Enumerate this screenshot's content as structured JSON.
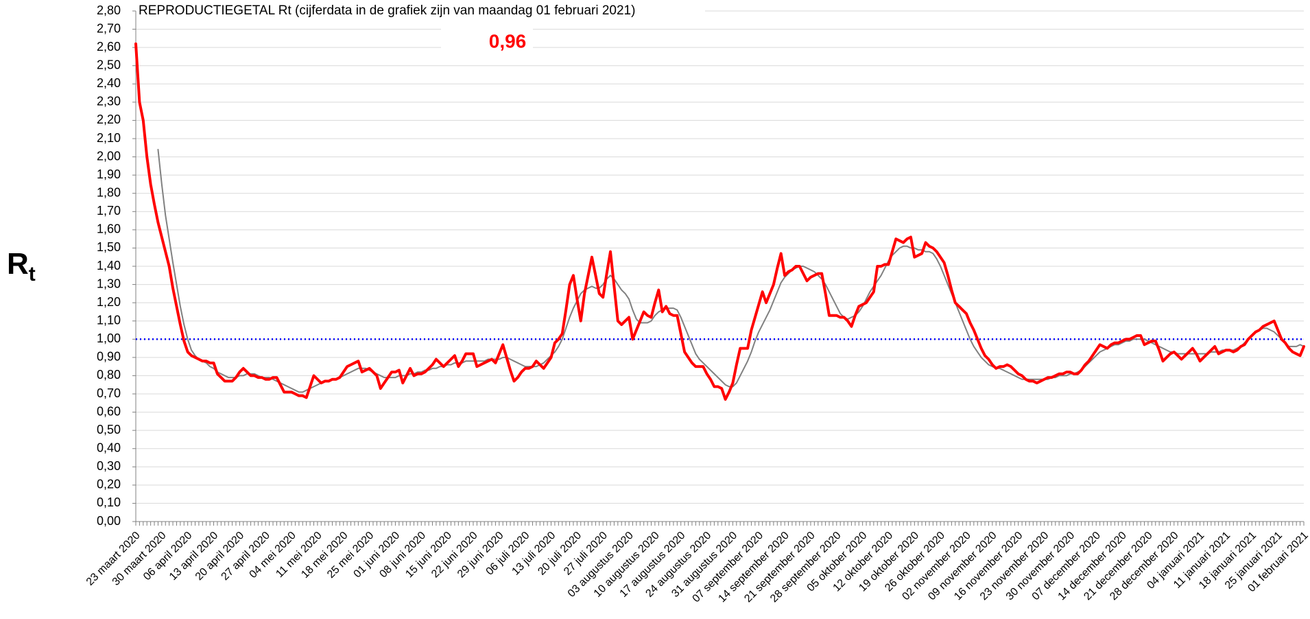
{
  "chart_data": {
    "type": "line",
    "title": "REPRODUCTIEGETAL Rt (cijferdata in de grafiek zijn van maandag 01 februari 2021)",
    "annotation": "0,96",
    "annotation_color": "#ff0000",
    "ylabel": "R",
    "ylabel_subscript": "t",
    "ylim": [
      0,
      2.8
    ],
    "yticks": [
      {
        "value": 0,
        "label": "0,00"
      },
      {
        "value": 0.1,
        "label": "0,10"
      },
      {
        "value": 0.2,
        "label": "0,20"
      },
      {
        "value": 0.3,
        "label": "0,30"
      },
      {
        "value": 0.4,
        "label": "0,40"
      },
      {
        "value": 0.5,
        "label": "0,50"
      },
      {
        "value": 0.6,
        "label": "0,60"
      },
      {
        "value": 0.7,
        "label": "0,70"
      },
      {
        "value": 0.8,
        "label": "0,80"
      },
      {
        "value": 0.9,
        "label": "0,90"
      },
      {
        "value": 1,
        "label": "1,00"
      },
      {
        "value": 1.1,
        "label": "1,10"
      },
      {
        "value": 1.2,
        "label": "1,20"
      },
      {
        "value": 1.3,
        "label": "1,30"
      },
      {
        "value": 1.4,
        "label": "1,40"
      },
      {
        "value": 1.5,
        "label": "1,50"
      },
      {
        "value": 1.6,
        "label": "1,60"
      },
      {
        "value": 1.7,
        "label": "1,70"
      },
      {
        "value": 1.8,
        "label": "1,80"
      },
      {
        "value": 1.9,
        "label": "1,90"
      },
      {
        "value": 2,
        "label": "2,00"
      },
      {
        "value": 2.1,
        "label": "2,10"
      },
      {
        "value": 2.2,
        "label": "2,20"
      },
      {
        "value": 2.3,
        "label": "2,30"
      },
      {
        "value": 2.4,
        "label": "2,40"
      },
      {
        "value": 2.5,
        "label": "2,50"
      },
      {
        "value": 2.6,
        "label": "2,60"
      },
      {
        "value": 2.7,
        "label": "2,70"
      },
      {
        "value": 2.8,
        "label": "2,80"
      }
    ],
    "grid": true,
    "reference_line": {
      "value": 1,
      "color": "#0000ff"
    },
    "categories": [
      "23 maart 2020",
      null,
      null,
      null,
      null,
      null,
      null,
      "30 maart 2020",
      null,
      null,
      null,
      null,
      null,
      null,
      "06 april 2020",
      null,
      null,
      null,
      null,
      null,
      null,
      "13 april 2020",
      null,
      null,
      null,
      null,
      null,
      null,
      "20 april 2020",
      null,
      null,
      null,
      null,
      null,
      null,
      "27 april 2020",
      null,
      null,
      null,
      null,
      null,
      null,
      "04 mei 2020",
      null,
      null,
      null,
      null,
      null,
      null,
      "11 mei 2020",
      null,
      null,
      null,
      null,
      null,
      null,
      "18 mei 2020",
      null,
      null,
      null,
      null,
      null,
      null,
      "25 mei 2020",
      null,
      null,
      null,
      null,
      null,
      null,
      "01 juni 2020",
      null,
      null,
      null,
      null,
      null,
      null,
      "08 juni 2020",
      null,
      null,
      null,
      null,
      null,
      null,
      "15 juni 2020",
      null,
      null,
      null,
      null,
      null,
      null,
      "22 juni 2020",
      null,
      null,
      null,
      null,
      null,
      null,
      "29 juni 2020",
      null,
      null,
      null,
      null,
      null,
      null,
      "06 juli 2020",
      null,
      null,
      null,
      null,
      null,
      null,
      "13 juli 2020",
      null,
      null,
      null,
      null,
      null,
      null,
      "20 juli 2020",
      null,
      null,
      null,
      null,
      null,
      null,
      "27 juli 2020",
      null,
      null,
      null,
      null,
      null,
      null,
      "03 augustus 2020",
      null,
      null,
      null,
      null,
      null,
      null,
      "10 augustus 2020",
      null,
      null,
      null,
      null,
      null,
      null,
      "17 augustus 2020",
      null,
      null,
      null,
      null,
      null,
      null,
      "24 augustus 2020",
      null,
      null,
      null,
      null,
      null,
      null,
      "31 augustus 2020",
      null,
      null,
      null,
      null,
      null,
      null,
      "07 september 2020",
      null,
      null,
      null,
      null,
      null,
      null,
      "14 september 2020",
      null,
      null,
      null,
      null,
      null,
      null,
      "21 september 2020",
      null,
      null,
      null,
      null,
      null,
      null,
      "28 september 2020",
      null,
      null,
      null,
      null,
      null,
      null,
      "05 oktober 2020",
      null,
      null,
      null,
      null,
      null,
      null,
      "12 oktober 2020",
      null,
      null,
      null,
      null,
      null,
      null,
      "19 oktober 2020",
      null,
      null,
      null,
      null,
      null,
      null,
      "26 oktober 2020",
      null,
      null,
      null,
      null,
      null,
      null,
      "02 november 2020",
      null,
      null,
      null,
      null,
      null,
      null,
      "09 november 2020",
      null,
      null,
      null,
      null,
      null,
      null,
      "16 november 2020",
      null,
      null,
      null,
      null,
      null,
      null,
      "23 november 2020",
      null,
      null,
      null,
      null,
      null,
      null,
      "30 november 2020",
      null,
      null,
      null,
      null,
      null,
      null,
      "07 december 2020",
      null,
      null,
      null,
      null,
      null,
      null,
      "14 december 2020",
      null,
      null,
      null,
      null,
      null,
      null,
      "21 december 2020",
      null,
      null,
      null,
      null,
      null,
      null,
      "28 december 2020",
      null,
      null,
      null,
      null,
      null,
      null,
      "04 januari 2021",
      null,
      null,
      null,
      null,
      null,
      null,
      "11 januari 2021",
      null,
      null,
      null,
      null,
      null,
      null,
      "18 januari 2021",
      null,
      null,
      null,
      null,
      null,
      null,
      "25 januari 2021",
      null,
      null,
      null,
      null,
      null,
      null,
      "01 februari 2021"
    ],
    "series": [
      {
        "color": "#ff0000",
        "width": 4,
        "values": [
          2.62,
          2.3,
          2.2,
          2.0,
          1.85,
          1.74,
          1.64,
          1.56,
          1.48,
          1.4,
          1.28,
          1.18,
          1.08,
          0.99,
          0.93,
          0.91,
          0.9,
          0.89,
          0.88,
          0.88,
          0.87,
          0.87,
          0.81,
          0.79,
          0.77,
          0.77,
          0.77,
          0.79,
          0.82,
          0.84,
          0.82,
          0.8,
          0.8,
          0.79,
          0.79,
          0.78,
          0.78,
          0.79,
          0.79,
          0.75,
          0.71,
          0.71,
          0.71,
          0.7,
          0.69,
          0.69,
          0.68,
          0.74,
          0.8,
          0.78,
          0.76,
          0.77,
          0.77,
          0.78,
          0.78,
          0.79,
          0.82,
          0.85,
          0.86,
          0.87,
          0.88,
          0.82,
          0.83,
          0.84,
          0.82,
          0.8,
          0.73,
          0.76,
          0.79,
          0.82,
          0.82,
          0.83,
          0.76,
          0.8,
          0.84,
          0.8,
          0.81,
          0.81,
          0.82,
          0.84,
          0.86,
          0.89,
          0.87,
          0.85,
          0.87,
          0.89,
          0.91,
          0.85,
          0.88,
          0.92,
          0.92,
          0.92,
          0.85,
          0.86,
          0.87,
          0.88,
          0.89,
          0.87,
          0.92,
          0.97,
          0.9,
          0.83,
          0.77,
          0.79,
          0.82,
          0.84,
          0.84,
          0.85,
          0.88,
          0.86,
          0.84,
          0.87,
          0.9,
          0.98,
          1.0,
          1.03,
          1.16,
          1.3,
          1.35,
          1.22,
          1.1,
          1.25,
          1.35,
          1.45,
          1.35,
          1.25,
          1.23,
          1.36,
          1.48,
          1.29,
          1.1,
          1.08,
          1.1,
          1.12,
          1.0,
          1.05,
          1.1,
          1.15,
          1.13,
          1.12,
          1.2,
          1.27,
          1.15,
          1.18,
          1.14,
          1.13,
          1.13,
          1.03,
          0.93,
          0.9,
          0.87,
          0.85,
          0.85,
          0.85,
          0.81,
          0.78,
          0.74,
          0.74,
          0.73,
          0.67,
          0.71,
          0.76,
          0.86,
          0.95,
          0.95,
          0.95,
          1.05,
          1.12,
          1.19,
          1.26,
          1.2,
          1.25,
          1.3,
          1.39,
          1.47,
          1.35,
          1.37,
          1.38,
          1.4,
          1.4,
          1.36,
          1.32,
          1.34,
          1.35,
          1.36,
          1.36,
          1.25,
          1.13,
          1.13,
          1.13,
          1.12,
          1.12,
          1.1,
          1.07,
          1.13,
          1.18,
          1.19,
          1.2,
          1.23,
          1.26,
          1.4,
          1.4,
          1.41,
          1.41,
          1.48,
          1.55,
          1.54,
          1.53,
          1.55,
          1.56,
          1.45,
          1.46,
          1.47,
          1.53,
          1.51,
          1.5,
          1.48,
          1.45,
          1.42,
          1.35,
          1.27,
          1.2,
          1.18,
          1.16,
          1.14,
          1.09,
          1.05,
          1.0,
          0.95,
          0.91,
          0.89,
          0.86,
          0.84,
          0.85,
          0.85,
          0.86,
          0.85,
          0.83,
          0.81,
          0.8,
          0.78,
          0.77,
          0.77,
          0.76,
          0.77,
          0.78,
          0.79,
          0.79,
          0.8,
          0.81,
          0.81,
          0.82,
          0.82,
          0.81,
          0.81,
          0.83,
          0.86,
          0.88,
          0.91,
          0.94,
          0.97,
          0.96,
          0.95,
          0.97,
          0.98,
          0.98,
          0.99,
          1.0,
          1.0,
          1.01,
          1.02,
          1.02,
          0.97,
          0.98,
          0.99,
          0.99,
          0.94,
          0.88,
          0.9,
          0.92,
          0.93,
          0.91,
          0.89,
          0.91,
          0.93,
          0.95,
          0.92,
          0.88,
          0.9,
          0.92,
          0.94,
          0.96,
          0.92,
          0.93,
          0.94,
          0.94,
          0.93,
          0.94,
          0.96,
          0.97,
          1.0,
          1.02,
          1.04,
          1.05,
          1.07,
          1.08,
          1.09,
          1.1,
          1.05,
          1.0,
          0.98,
          0.95,
          0.93,
          0.92,
          0.91,
          0.96
        ]
      },
      {
        "color": "#808080",
        "width": 2,
        "values": [
          null,
          null,
          null,
          null,
          null,
          null,
          2.04,
          1.85,
          1.68,
          1.55,
          1.42,
          1.3,
          1.18,
          1.08,
          1.0,
          0.94,
          0.91,
          0.89,
          0.88,
          0.87,
          0.85,
          0.84,
          0.82,
          0.81,
          0.8,
          0.79,
          0.79,
          0.79,
          0.8,
          0.8,
          0.81,
          0.81,
          0.81,
          0.8,
          0.79,
          0.79,
          0.79,
          0.78,
          0.77,
          0.76,
          0.75,
          0.74,
          0.73,
          0.72,
          0.71,
          0.71,
          0.72,
          0.73,
          0.74,
          0.75,
          0.76,
          0.77,
          0.77,
          0.78,
          0.78,
          0.79,
          0.8,
          0.81,
          0.82,
          0.83,
          0.84,
          0.84,
          0.84,
          0.83,
          0.82,
          0.81,
          0.8,
          0.79,
          0.79,
          0.79,
          0.79,
          0.8,
          0.8,
          0.8,
          0.81,
          0.81,
          0.82,
          0.82,
          0.83,
          0.83,
          0.84,
          0.84,
          0.85,
          0.85,
          0.86,
          0.86,
          0.87,
          0.87,
          0.87,
          0.88,
          0.88,
          0.88,
          0.88,
          0.88,
          0.88,
          0.89,
          0.89,
          0.89,
          0.89,
          0.9,
          0.9,
          0.89,
          0.88,
          0.87,
          0.86,
          0.85,
          0.85,
          0.85,
          0.85,
          0.86,
          0.87,
          0.89,
          0.91,
          0.93,
          0.96,
          1.0,
          1.06,
          1.12,
          1.17,
          1.21,
          1.25,
          1.27,
          1.28,
          1.29,
          1.28,
          1.28,
          1.3,
          1.33,
          1.35,
          1.33,
          1.3,
          1.27,
          1.25,
          1.22,
          1.16,
          1.11,
          1.09,
          1.09,
          1.09,
          1.1,
          1.13,
          1.15,
          1.16,
          1.17,
          1.17,
          1.17,
          1.16,
          1.12,
          1.07,
          1.02,
          0.97,
          0.92,
          0.89,
          0.87,
          0.85,
          0.83,
          0.81,
          0.79,
          0.77,
          0.75,
          0.74,
          0.74,
          0.76,
          0.8,
          0.84,
          0.88,
          0.93,
          0.99,
          1.04,
          1.08,
          1.12,
          1.16,
          1.21,
          1.26,
          1.31,
          1.34,
          1.36,
          1.38,
          1.39,
          1.4,
          1.4,
          1.39,
          1.38,
          1.37,
          1.35,
          1.33,
          1.3,
          1.26,
          1.22,
          1.18,
          1.14,
          1.12,
          1.11,
          1.12,
          1.13,
          1.15,
          1.18,
          1.22,
          1.26,
          1.29,
          1.32,
          1.35,
          1.39,
          1.43,
          1.46,
          1.48,
          1.5,
          1.51,
          1.51,
          1.5,
          1.5,
          1.49,
          1.49,
          1.48,
          1.48,
          1.47,
          1.44,
          1.4,
          1.35,
          1.3,
          1.25,
          1.2,
          1.15,
          1.1,
          1.05,
          1.0,
          0.96,
          0.93,
          0.9,
          0.88,
          0.86,
          0.85,
          0.84,
          0.84,
          0.83,
          0.82,
          0.81,
          0.8,
          0.79,
          0.78,
          0.78,
          0.78,
          0.78,
          0.78,
          0.78,
          0.78,
          0.78,
          0.79,
          0.79,
          0.8,
          0.8,
          0.8,
          0.81,
          0.81,
          0.82,
          0.83,
          0.85,
          0.87,
          0.89,
          0.91,
          0.93,
          0.94,
          0.95,
          0.96,
          0.97,
          0.97,
          0.98,
          0.99,
          0.99,
          1.0,
          1.0,
          1.0,
          1.0,
          0.99,
          0.98,
          0.97,
          0.96,
          0.95,
          0.94,
          0.93,
          0.93,
          0.92,
          0.92,
          0.92,
          0.92,
          0.92,
          0.92,
          0.92,
          0.92,
          0.92,
          0.93,
          0.93,
          0.93,
          0.94,
          0.94,
          0.94,
          0.94,
          0.95,
          0.96,
          0.98,
          1.0,
          1.02,
          1.04,
          1.05,
          1.06,
          1.06,
          1.05,
          1.04,
          1.02,
          1.0,
          0.98,
          0.96,
          0.96,
          0.96,
          0.97,
          0.96
        ]
      }
    ]
  }
}
